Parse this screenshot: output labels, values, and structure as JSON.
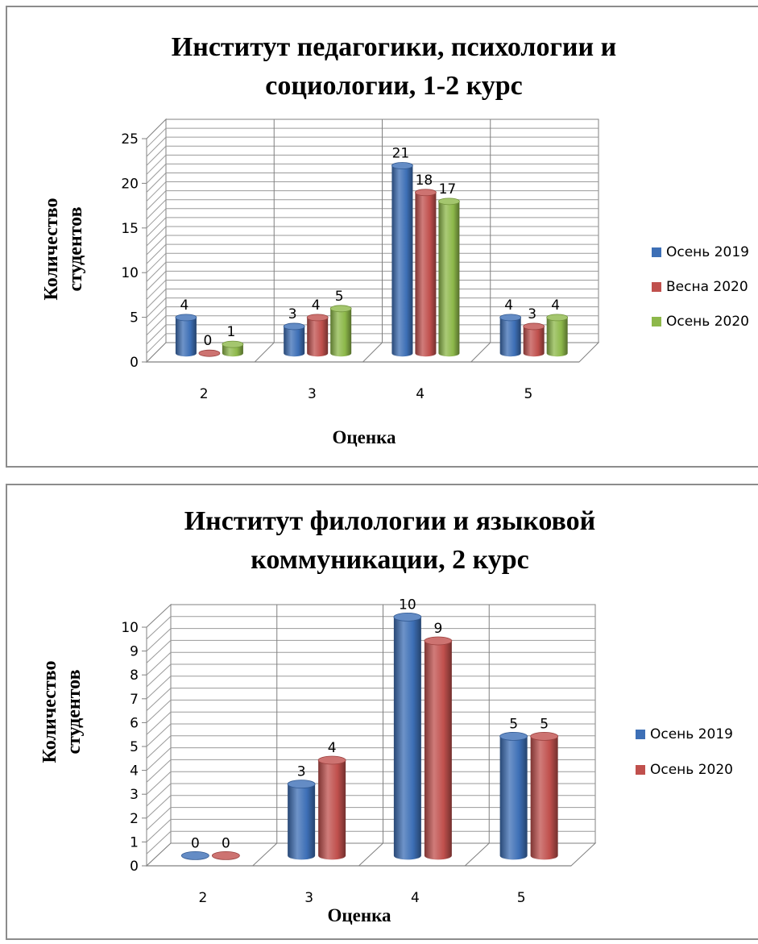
{
  "chart_data": [
    {
      "type": "bar",
      "title_lines": [
        "Институт педагогики, психологии и",
        "социологии, 1-2 курс"
      ],
      "xlabel": "Оценка",
      "ylabel_lines": [
        "Количество",
        "студентов"
      ],
      "categories": [
        "2",
        "3",
        "4",
        "5"
      ],
      "ylim": [
        0,
        25
      ],
      "yticks": [
        0,
        5,
        10,
        15,
        20,
        25
      ],
      "grid": true,
      "legend_position": "right",
      "series": [
        {
          "name": "Осень 2019",
          "color": "#3d6fb6",
          "values": [
            4,
            3,
            21,
            4
          ]
        },
        {
          "name": "Весна 2020",
          "color": "#c0504d",
          "values": [
            0,
            4,
            18,
            3
          ]
        },
        {
          "name": "Осень 2020",
          "color": "#8db84a",
          "values": [
            1,
            5,
            17,
            4
          ]
        }
      ]
    },
    {
      "type": "bar",
      "title_lines": [
        "Институт филологии и языковой",
        "коммуникации, 2 курс"
      ],
      "xlabel": "Оценка",
      "ylabel_lines": [
        "Количество",
        "студентов"
      ],
      "categories": [
        "2",
        "3",
        "4",
        "5"
      ],
      "ylim": [
        0,
        10
      ],
      "yticks": [
        0,
        1,
        2,
        3,
        4,
        5,
        6,
        7,
        8,
        9,
        10
      ],
      "grid": true,
      "legend_position": "right",
      "series": [
        {
          "name": "Осень 2019",
          "color": "#3d6fb6",
          "values": [
            0,
            3,
            10,
            5
          ]
        },
        {
          "name": "Осень 2020",
          "color": "#c0504d",
          "values": [
            0,
            4,
            9,
            5
          ]
        }
      ]
    }
  ]
}
